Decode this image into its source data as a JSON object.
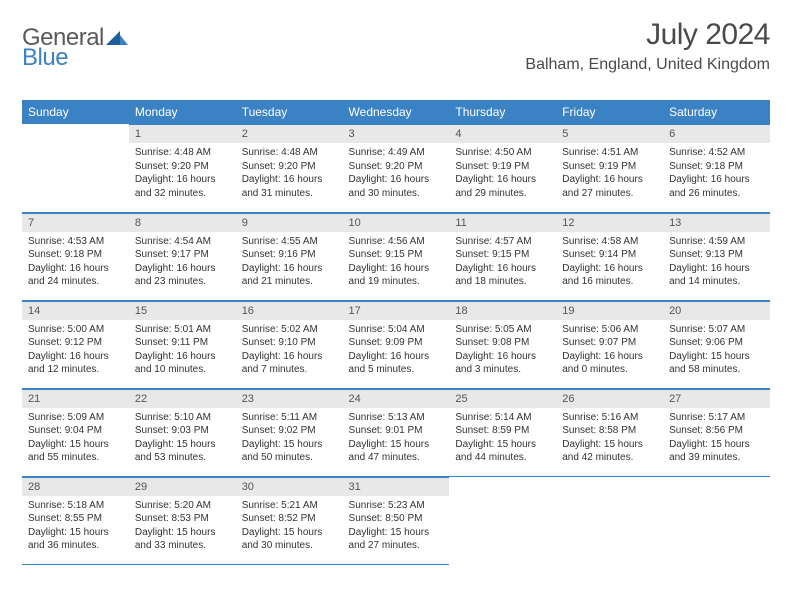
{
  "logo": {
    "text1": "General",
    "text2": "Blue"
  },
  "title": {
    "month": "July 2024",
    "location": "Balham, England, United Kingdom"
  },
  "colors": {
    "header_bg": "#3b82c4",
    "header_text": "#ffffff",
    "daynum_bg": "#e8e8e8",
    "daynum_text": "#555555",
    "body_text": "#333333",
    "rule": "#3b82c4",
    "logo_gray": "#5a5a5a",
    "logo_blue": "#3b82c4"
  },
  "weekdays": [
    "Sunday",
    "Monday",
    "Tuesday",
    "Wednesday",
    "Thursday",
    "Friday",
    "Saturday"
  ],
  "first_weekday_index": 1,
  "days": [
    {
      "n": 1,
      "sunrise": "4:48 AM",
      "sunset": "9:20 PM",
      "dl": "16 hours and 32 minutes."
    },
    {
      "n": 2,
      "sunrise": "4:48 AM",
      "sunset": "9:20 PM",
      "dl": "16 hours and 31 minutes."
    },
    {
      "n": 3,
      "sunrise": "4:49 AM",
      "sunset": "9:20 PM",
      "dl": "16 hours and 30 minutes."
    },
    {
      "n": 4,
      "sunrise": "4:50 AM",
      "sunset": "9:19 PM",
      "dl": "16 hours and 29 minutes."
    },
    {
      "n": 5,
      "sunrise": "4:51 AM",
      "sunset": "9:19 PM",
      "dl": "16 hours and 27 minutes."
    },
    {
      "n": 6,
      "sunrise": "4:52 AM",
      "sunset": "9:18 PM",
      "dl": "16 hours and 26 minutes."
    },
    {
      "n": 7,
      "sunrise": "4:53 AM",
      "sunset": "9:18 PM",
      "dl": "16 hours and 24 minutes."
    },
    {
      "n": 8,
      "sunrise": "4:54 AM",
      "sunset": "9:17 PM",
      "dl": "16 hours and 23 minutes."
    },
    {
      "n": 9,
      "sunrise": "4:55 AM",
      "sunset": "9:16 PM",
      "dl": "16 hours and 21 minutes."
    },
    {
      "n": 10,
      "sunrise": "4:56 AM",
      "sunset": "9:15 PM",
      "dl": "16 hours and 19 minutes."
    },
    {
      "n": 11,
      "sunrise": "4:57 AM",
      "sunset": "9:15 PM",
      "dl": "16 hours and 18 minutes."
    },
    {
      "n": 12,
      "sunrise": "4:58 AM",
      "sunset": "9:14 PM",
      "dl": "16 hours and 16 minutes."
    },
    {
      "n": 13,
      "sunrise": "4:59 AM",
      "sunset": "9:13 PM",
      "dl": "16 hours and 14 minutes."
    },
    {
      "n": 14,
      "sunrise": "5:00 AM",
      "sunset": "9:12 PM",
      "dl": "16 hours and 12 minutes."
    },
    {
      "n": 15,
      "sunrise": "5:01 AM",
      "sunset": "9:11 PM",
      "dl": "16 hours and 10 minutes."
    },
    {
      "n": 16,
      "sunrise": "5:02 AM",
      "sunset": "9:10 PM",
      "dl": "16 hours and 7 minutes."
    },
    {
      "n": 17,
      "sunrise": "5:04 AM",
      "sunset": "9:09 PM",
      "dl": "16 hours and 5 minutes."
    },
    {
      "n": 18,
      "sunrise": "5:05 AM",
      "sunset": "9:08 PM",
      "dl": "16 hours and 3 minutes."
    },
    {
      "n": 19,
      "sunrise": "5:06 AM",
      "sunset": "9:07 PM",
      "dl": "16 hours and 0 minutes."
    },
    {
      "n": 20,
      "sunrise": "5:07 AM",
      "sunset": "9:06 PM",
      "dl": "15 hours and 58 minutes."
    },
    {
      "n": 21,
      "sunrise": "5:09 AM",
      "sunset": "9:04 PM",
      "dl": "15 hours and 55 minutes."
    },
    {
      "n": 22,
      "sunrise": "5:10 AM",
      "sunset": "9:03 PM",
      "dl": "15 hours and 53 minutes."
    },
    {
      "n": 23,
      "sunrise": "5:11 AM",
      "sunset": "9:02 PM",
      "dl": "15 hours and 50 minutes."
    },
    {
      "n": 24,
      "sunrise": "5:13 AM",
      "sunset": "9:01 PM",
      "dl": "15 hours and 47 minutes."
    },
    {
      "n": 25,
      "sunrise": "5:14 AM",
      "sunset": "8:59 PM",
      "dl": "15 hours and 44 minutes."
    },
    {
      "n": 26,
      "sunrise": "5:16 AM",
      "sunset": "8:58 PM",
      "dl": "15 hours and 42 minutes."
    },
    {
      "n": 27,
      "sunrise": "5:17 AM",
      "sunset": "8:56 PM",
      "dl": "15 hours and 39 minutes."
    },
    {
      "n": 28,
      "sunrise": "5:18 AM",
      "sunset": "8:55 PM",
      "dl": "15 hours and 36 minutes."
    },
    {
      "n": 29,
      "sunrise": "5:20 AM",
      "sunset": "8:53 PM",
      "dl": "15 hours and 33 minutes."
    },
    {
      "n": 30,
      "sunrise": "5:21 AM",
      "sunset": "8:52 PM",
      "dl": "15 hours and 30 minutes."
    },
    {
      "n": 31,
      "sunrise": "5:23 AM",
      "sunset": "8:50 PM",
      "dl": "15 hours and 27 minutes."
    }
  ],
  "labels": {
    "sunrise": "Sunrise:",
    "sunset": "Sunset:",
    "daylight": "Daylight:"
  }
}
